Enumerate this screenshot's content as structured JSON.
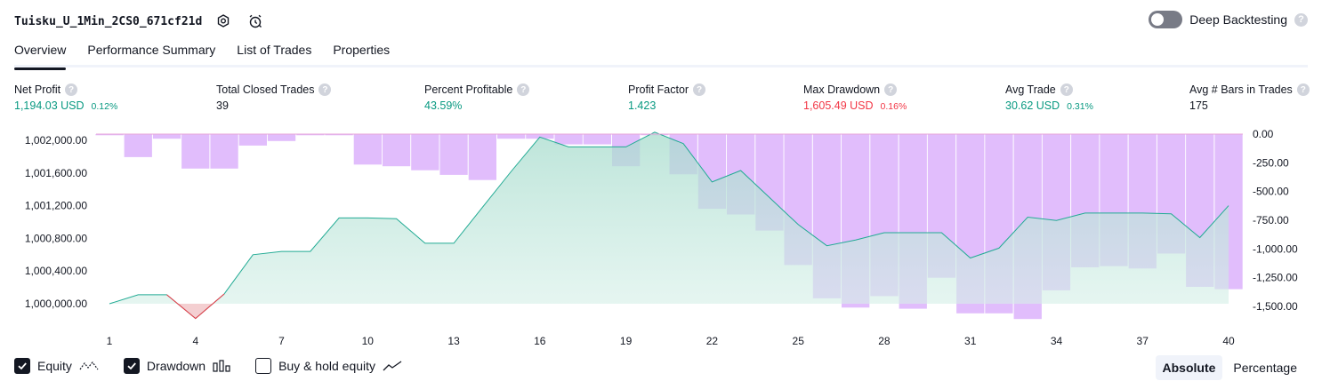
{
  "header": {
    "strategy_name": "Tuisku_U_1Min_2CS0_671cf21d",
    "settings_icon": "gear-icon",
    "alert_icon": "alarm-clock-icon",
    "deep_backtesting_label": "Deep Backtesting",
    "deep_backtesting_enabled": false,
    "help_glyph": "?"
  },
  "tabs": [
    {
      "label": "Overview",
      "active": true
    },
    {
      "label": "Performance Summary",
      "active": false
    },
    {
      "label": "List of Trades",
      "active": false
    },
    {
      "label": "Properties",
      "active": false
    }
  ],
  "metrics": [
    {
      "label": "Net Profit",
      "value": "1,194.03 USD",
      "pct": "0.12%",
      "tone": "pos"
    },
    {
      "label": "Total Closed Trades",
      "value": "39",
      "pct": "",
      "tone": "neu"
    },
    {
      "label": "Percent Profitable",
      "value": "43.59%",
      "pct": "",
      "tone": "pos"
    },
    {
      "label": "Profit Factor",
      "value": "1.423",
      "pct": "",
      "tone": "pos"
    },
    {
      "label": "Max Drawdown",
      "value": "1,605.49 USD",
      "pct": "0.16%",
      "tone": "neg"
    },
    {
      "label": "Avg Trade",
      "value": "30.62 USD",
      "pct": "0.31%",
      "tone": "pos"
    },
    {
      "label": "Avg # Bars in Trades",
      "value": "175",
      "pct": "",
      "tone": "neu"
    }
  ],
  "colors": {
    "positive": "#089981",
    "negative": "#f23645",
    "equity_line": "#22ab94",
    "equity_fill": "#bfe7dc",
    "drawdown_fill": "#e1bdfc",
    "text": "#131722",
    "axis_text": "#131722"
  },
  "chart_data": {
    "type": "area",
    "x": [
      1,
      2,
      3,
      4,
      5,
      6,
      7,
      8,
      9,
      10,
      11,
      12,
      13,
      14,
      15,
      16,
      17,
      18,
      19,
      20,
      21,
      22,
      23,
      24,
      25,
      26,
      27,
      28,
      29,
      30,
      31,
      32,
      33,
      34,
      35,
      36,
      37,
      38,
      39,
      40
    ],
    "x_tick_labels": [
      "1",
      "4",
      "7",
      "10",
      "13",
      "16",
      "19",
      "22",
      "25",
      "28",
      "31",
      "34",
      "37",
      "40"
    ],
    "left_axis": {
      "tick_labels": [
        "1,002,000.00",
        "1,001,600.00",
        "1,001,200.00",
        "1,000,800.00",
        "1,000,400.00",
        "1,000,000.00"
      ],
      "range": [
        999820,
        1002100
      ]
    },
    "right_axis": {
      "tick_labels": [
        "0.00",
        "-250.00",
        "-500.00",
        "-750.00",
        "-1,000.00",
        "-1,250.00",
        "-1,500.00"
      ],
      "range": [
        -1610,
        0
      ]
    },
    "series": [
      {
        "name": "Equity",
        "type": "area",
        "axis": "left",
        "baseline": 1000000,
        "values": [
          1000000,
          1000110,
          1000110,
          999820,
          1000120,
          1000600,
          1000640,
          1000640,
          1001050,
          1001050,
          1001040,
          1000740,
          1000740,
          1001180,
          1001620,
          1002040,
          1001920,
          1001920,
          1001920,
          1002100,
          1001960,
          1001490,
          1001630,
          1001300,
          1000970,
          1000710,
          1000780,
          1000870,
          1000870,
          1000870,
          1000560,
          1000680,
          1001060,
          1001020,
          1001110,
          1001110,
          1001110,
          1001100,
          1000810,
          1001200
        ]
      },
      {
        "name": "Drawdown",
        "type": "bar",
        "axis": "right",
        "values": [
          -10,
          -200,
          -40,
          -300,
          -300,
          -100,
          -60,
          -10,
          -10,
          -265,
          -280,
          -315,
          -355,
          -400,
          -40,
          -40,
          -90,
          -90,
          -280,
          -10,
          -350,
          -650,
          -700,
          -840,
          -1140,
          -1430,
          -1510,
          -1410,
          -1520,
          -1250,
          -1560,
          -1560,
          -1610,
          -1360,
          -1160,
          -1150,
          -1170,
          -1040,
          -1330,
          -1350
        ]
      }
    ],
    "legend": {
      "equity_label": "Equity",
      "drawdown_label": "Drawdown",
      "buyhold_label": "Buy & hold equity",
      "equity_checked": true,
      "drawdown_checked": true,
      "buyhold_checked": false
    },
    "modes": [
      "Absolute",
      "Percentage"
    ],
    "active_mode": "Absolute"
  }
}
